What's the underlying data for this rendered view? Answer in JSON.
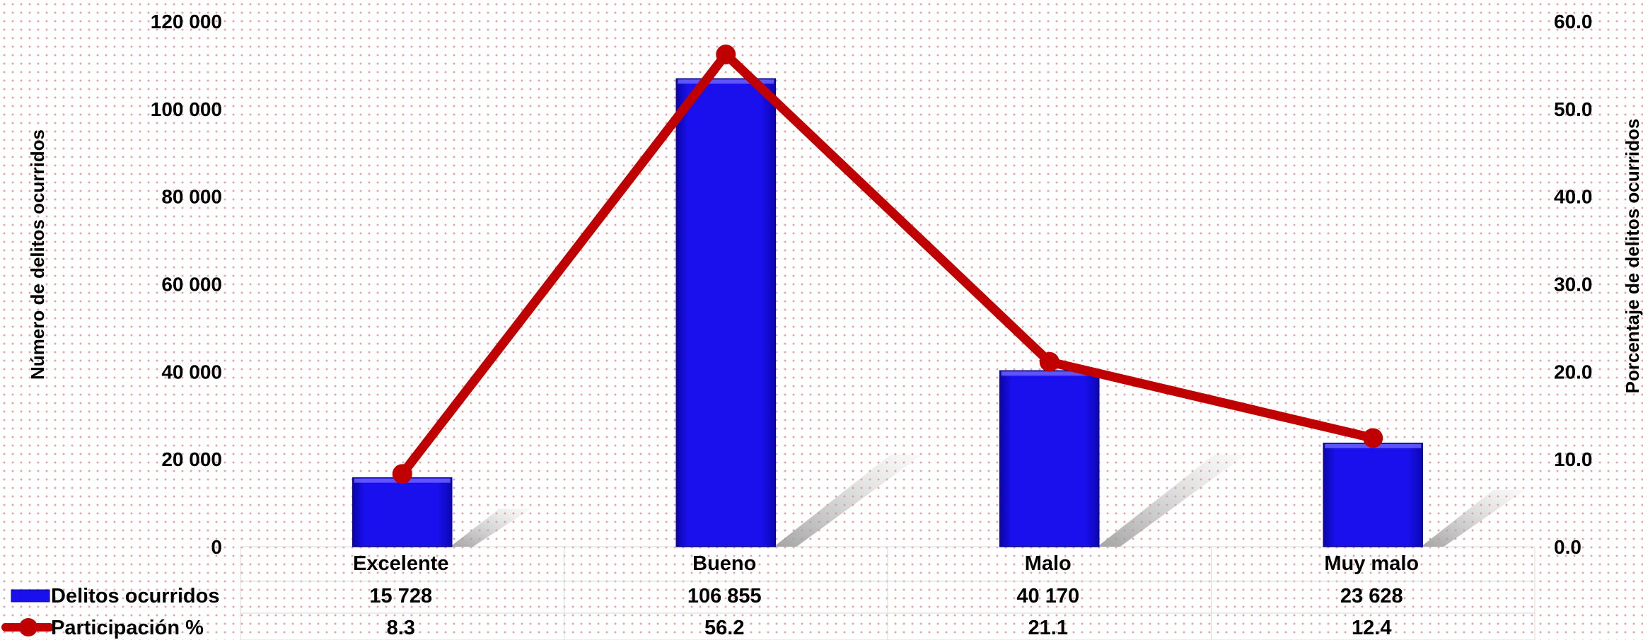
{
  "chart_data": {
    "type": "bar",
    "categories": [
      "Excelente",
      "Bueno",
      "Malo",
      "Muy malo"
    ],
    "series": [
      {
        "name": "Delitos ocurridos",
        "kind": "bar",
        "axis": "left",
        "color": "#1a10ee",
        "values": [
          15728,
          106855,
          40170,
          23628
        ],
        "labels": [
          "15 728",
          "106 855",
          "40 170",
          "23 628"
        ]
      },
      {
        "name": "Participación %",
        "kind": "line",
        "axis": "right",
        "color": "#c00000",
        "values": [
          8.3,
          56.2,
          21.1,
          12.4
        ],
        "labels": [
          "8.3",
          "56.2",
          "21.1",
          "12.4"
        ]
      }
    ],
    "ylabel": "Número de delitos ocurridos",
    "y2label": "Porcentaje de delitos ocurridos",
    "ylim": [
      0,
      120000
    ],
    "y2lim": [
      0,
      60
    ],
    "yticks": [
      "0",
      "20 000",
      "40 000",
      "60 000",
      "80 000",
      "100 000",
      "120 000"
    ],
    "y2ticks": [
      "0.0",
      "10.0",
      "20.0",
      "30.0",
      "40.0",
      "50.0",
      "60.0"
    ],
    "data_table": true,
    "grid": false,
    "legend": "data-table"
  }
}
